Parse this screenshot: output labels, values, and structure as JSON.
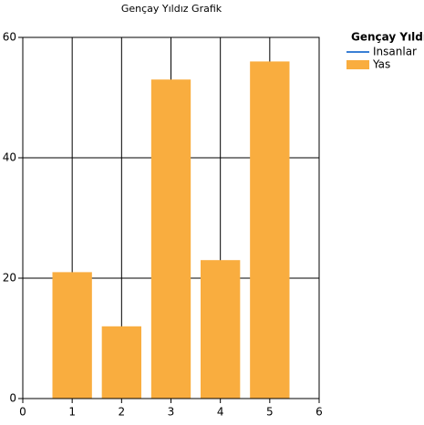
{
  "chart_data": {
    "type": "bar",
    "title": "Gençay Yıldız Grafik",
    "legend_title": "Gençay Yıldız",
    "legend": "right",
    "x": [
      1,
      2,
      3,
      4,
      5
    ],
    "series": [
      {
        "name": "Insanlar",
        "type": "line",
        "color": "#3a7fd5",
        "values": [
          null,
          null,
          null,
          null,
          null
        ]
      },
      {
        "name": "Yas",
        "type": "bar",
        "color": "#f9ad3f",
        "values": [
          21,
          12,
          53,
          23,
          56
        ]
      }
    ],
    "xlim": [
      0,
      6
    ],
    "xticks": [
      0,
      1,
      2,
      3,
      4,
      5,
      6
    ],
    "ylim": [
      0,
      60
    ],
    "yticks": [
      0,
      20,
      40,
      60
    ],
    "grid": true
  }
}
